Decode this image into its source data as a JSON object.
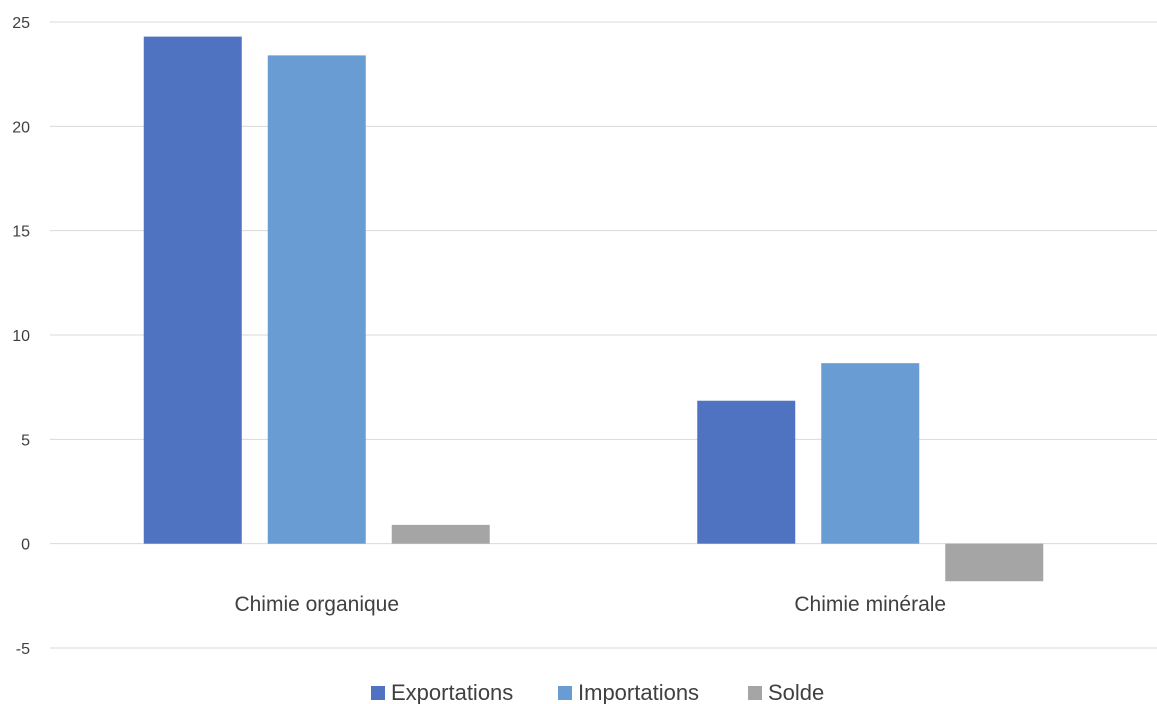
{
  "chart_data": {
    "type": "bar",
    "title": "",
    "xlabel": "",
    "ylabel": "",
    "categories": [
      "Chimie organique",
      "Chimie minérale"
    ],
    "series": [
      {
        "name": "Exportations",
        "color": "#4F73C0",
        "values": [
          24.3,
          6.85
        ]
      },
      {
        "name": "Importations",
        "color": "#689CD2",
        "values": [
          23.4,
          8.65
        ]
      },
      {
        "name": "Solde",
        "color": "#A5A5A5",
        "values": [
          0.9,
          -1.8
        ]
      }
    ],
    "ylim": [
      -5,
      25
    ],
    "yticks": [
      "25",
      "20",
      "15",
      "10",
      "5",
      "0",
      "-5"
    ],
    "grid": true,
    "legend_position": "bottom"
  }
}
